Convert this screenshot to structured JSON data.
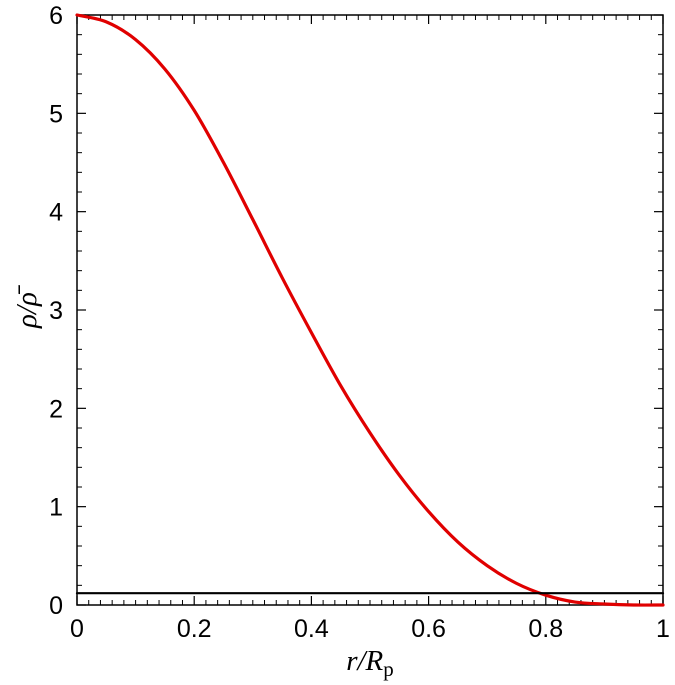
{
  "chart_data": {
    "type": "line",
    "xlabel": "r/R_p",
    "ylabel": "ρ/ρ̄",
    "xlim": [
      0,
      1
    ],
    "ylim": [
      0,
      6
    ],
    "grid": false,
    "legend": "none",
    "x_ticks": [
      "0",
      "0.2",
      "0.4",
      "0.6",
      "0.8",
      "1"
    ],
    "y_ticks": [
      "0",
      "1",
      "2",
      "3",
      "4",
      "5",
      "6"
    ],
    "x_tick_values": [
      0,
      0.2,
      0.4,
      0.6,
      0.8,
      1
    ],
    "y_tick_values": [
      0,
      1,
      2,
      3,
      4,
      5,
      6
    ],
    "series": [
      {
        "color": "#e00000",
        "x": [
          0,
          0.05,
          0.1,
          0.15,
          0.2,
          0.25,
          0.3,
          0.35,
          0.4,
          0.45,
          0.5,
          0.55,
          0.6,
          0.65,
          0.7,
          0.75,
          0.8,
          0.85,
          0.9,
          0.95,
          1
        ],
        "y": [
          6.0,
          5.93,
          5.75,
          5.45,
          5.03,
          4.5,
          3.92,
          3.33,
          2.77,
          2.23,
          1.75,
          1.32,
          0.95,
          0.64,
          0.4,
          0.22,
          0.1,
          0.03,
          0.01,
          0.0,
          0.0
        ]
      },
      {
        "color": "#000000",
        "x": [
          0,
          1
        ],
        "y": [
          0.12,
          0.12
        ]
      }
    ]
  }
}
